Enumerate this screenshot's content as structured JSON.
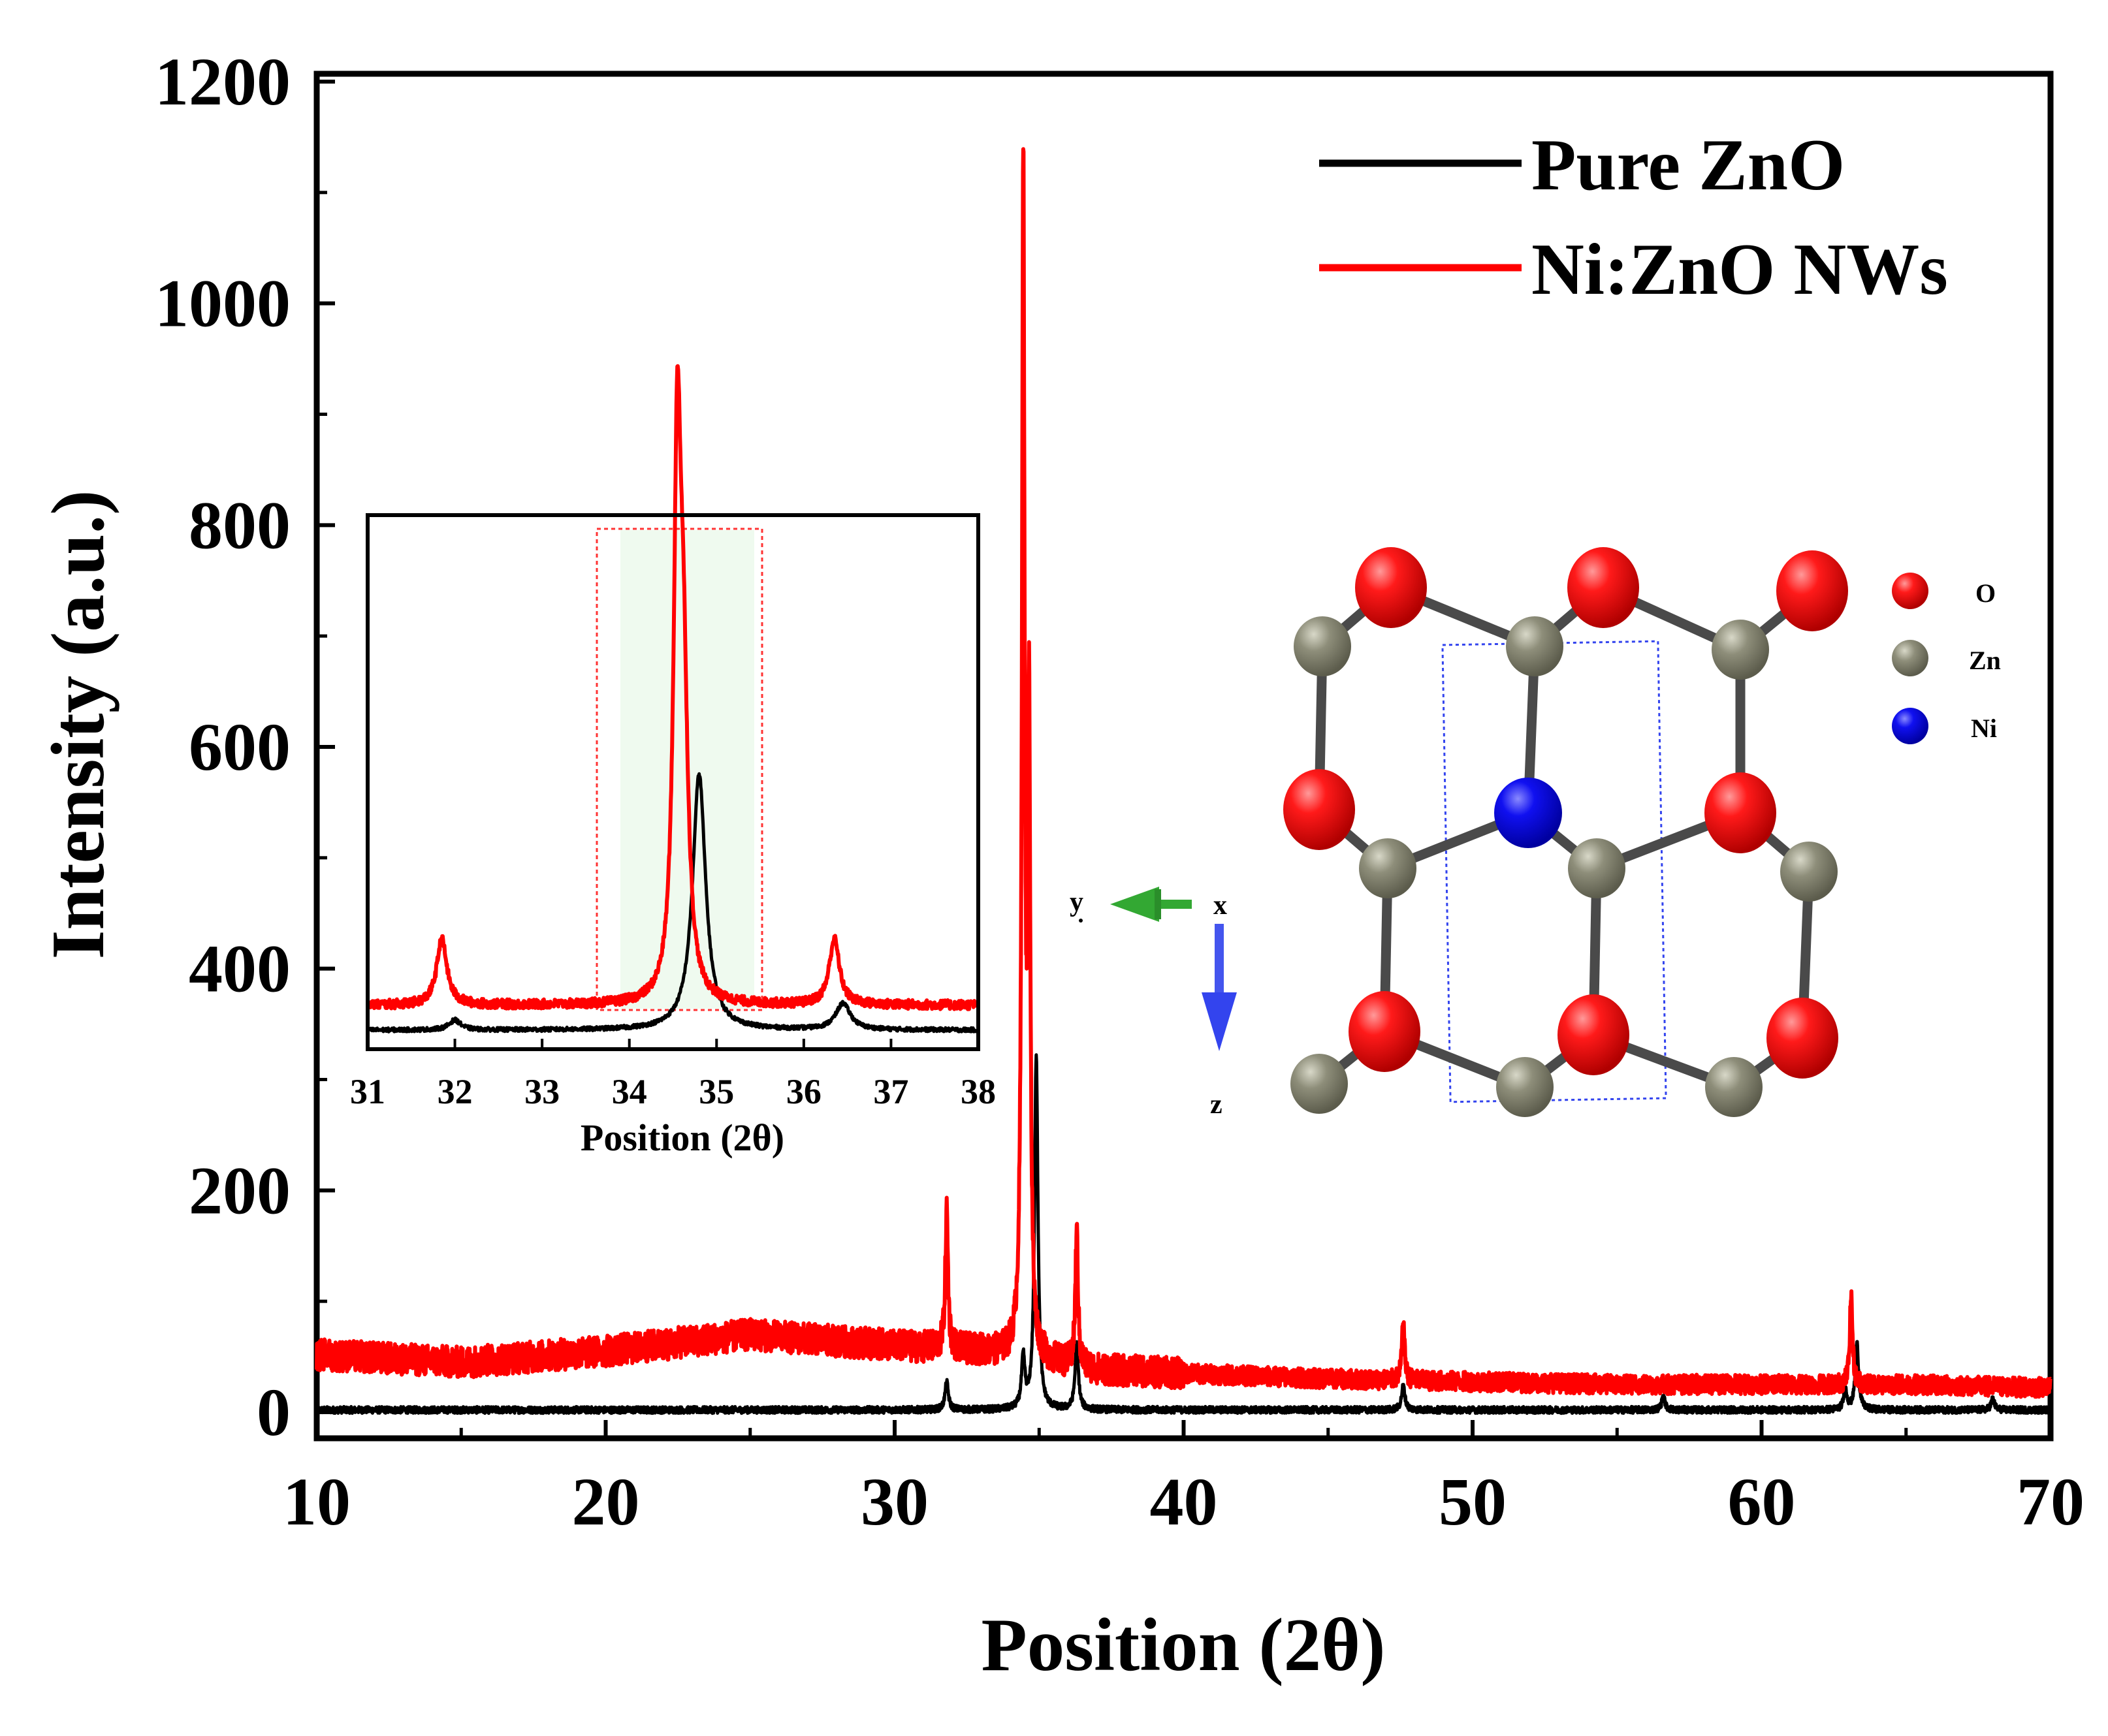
{
  "chart_data": [
    {
      "type": "line",
      "role": "main",
      "xlabel": "Position (2θ)",
      "ylabel": "Intensity (a.u.)",
      "xlim": [
        10,
        70
      ],
      "ylim": [
        -25,
        1200
      ],
      "xticks": [
        10,
        20,
        30,
        40,
        50,
        60,
        70
      ],
      "yticks": [
        0,
        200,
        400,
        600,
        800,
        1000,
        1200
      ],
      "grid": false,
      "legend_position": "top-right",
      "series": [
        {
          "name": "Pure ZnO",
          "color": "#000000",
          "baseline": [
            [
              10,
              2
            ],
            [
              70,
              2
            ]
          ],
          "peaks": [
            [
              31.8,
              25
            ],
            [
              34.45,
              45
            ],
            [
              34.9,
              320
            ],
            [
              36.3,
              58
            ],
            [
              47.6,
              22
            ],
            [
              56.6,
              12
            ],
            [
              62.9,
              18
            ],
            [
              63.3,
              60
            ],
            [
              68.0,
              10
            ]
          ]
        },
        {
          "name": "Ni:ZnO NWs",
          "color": "#ff0000",
          "baseline": [
            [
              10,
              52
            ],
            [
              15,
              45
            ],
            [
              20,
              55
            ],
            [
              25,
              70
            ],
            [
              30,
              60
            ],
            [
              33,
              55
            ],
            [
              37,
              38
            ],
            [
              45,
              30
            ],
            [
              55,
              25
            ],
            [
              65,
              25
            ],
            [
              70,
              22
            ]
          ],
          "peaks": [
            [
              31.8,
              125
            ],
            [
              34.45,
              1065
            ],
            [
              34.65,
              560
            ],
            [
              36.3,
              120
            ],
            [
              47.6,
              52
            ],
            [
              63.1,
              80
            ]
          ]
        }
      ]
    },
    {
      "type": "line",
      "role": "inset",
      "xlabel": "Position (2θ)",
      "xlim": [
        31,
        38
      ],
      "ylim": [
        0,
        900
      ],
      "xticks": [
        31,
        32,
        33,
        34,
        35,
        36,
        37,
        38
      ],
      "series": [
        {
          "name": "Pure ZnO",
          "color": "#000000",
          "baseline": 22,
          "peaks": [
            [
              32.0,
              15,
              0.08
            ],
            [
              34.8,
              390,
              0.09
            ],
            [
              36.45,
              40,
              0.1
            ]
          ]
        },
        {
          "name": "Ni:ZnO NWs",
          "color": "#ff0000",
          "baseline": 60,
          "peaks": [
            [
              31.85,
              100,
              0.07
            ],
            [
              34.55,
              790,
              0.05
            ],
            [
              34.62,
              420,
              0.06
            ],
            [
              36.35,
              100,
              0.07
            ]
          ]
        }
      ]
    }
  ],
  "structure": {
    "legend": [
      "O",
      "Zn",
      "Ni"
    ],
    "axes": {
      "y": "y",
      "x": "x",
      "z": "z"
    },
    "colors": {
      "O": "#ee0000",
      "Zn": "#8c8c78",
      "Ni": "#0000dd",
      "bond": "#4a4a4a",
      "y_axis": "#2aa02a",
      "z_axis": "#3344ee"
    }
  }
}
